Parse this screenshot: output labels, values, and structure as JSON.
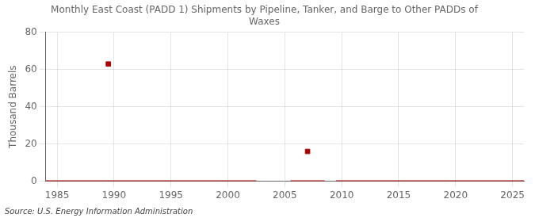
{
  "chart_data": {
    "type": "scatter",
    "title": "Monthly East Coast (PADD 1) Shipments by Pipeline, Tanker, and Barge to Other PADDs of\nWaxes",
    "ylabel": "Thousand Barrels",
    "source": "Source: U.S. Energy Information Administration",
    "xlim": [
      1984,
      2026
    ],
    "xticks": [
      1985,
      1990,
      1995,
      2000,
      2005,
      2010,
      2015,
      2020,
      2025
    ],
    "ylim": [
      0,
      80
    ],
    "yticks": [
      0,
      20,
      40,
      60,
      80
    ],
    "grid": true,
    "series": [
      {
        "type": "scatter",
        "marker": "square",
        "color": "#aa0000",
        "x": [
          1989.5,
          2007.0
        ],
        "values": [
          63,
          16
        ]
      },
      {
        "type": "line",
        "color": "#aa0000",
        "x": [
          1984,
          2002.5
        ],
        "values": [
          0,
          0
        ]
      },
      {
        "type": "line",
        "color": "#aa0000",
        "x": [
          2005.5,
          2008.5
        ],
        "values": [
          0,
          0
        ]
      },
      {
        "type": "line",
        "color": "#aa0000",
        "x": [
          2009.5,
          2026
        ],
        "values": [
          0,
          0
        ]
      }
    ]
  }
}
